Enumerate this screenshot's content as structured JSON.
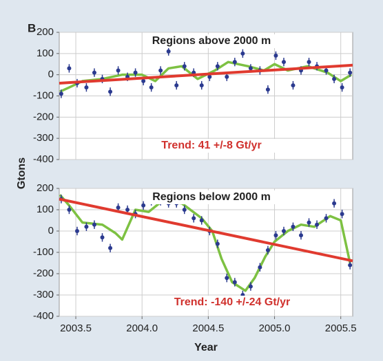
{
  "panel_label": "B",
  "ylabel": "Gtons",
  "xlabel": "Year",
  "chart_data": [
    {
      "type": "scatter",
      "title": "Regions above 2000 m",
      "annotation": "Trend: 41 +/-8 Gt/yr",
      "xlim": [
        2003.375,
        2005.59
      ],
      "ylim": [
        -400,
        200
      ],
      "yticks": [
        200,
        100,
        0,
        -100,
        -200,
        -300,
        -400
      ],
      "grid": true,
      "color": "#2b3a8f",
      "x": [
        2003.39,
        2003.45,
        2003.51,
        2003.58,
        2003.64,
        2003.7,
        2003.76,
        2003.82,
        2003.89,
        2003.95,
        2004.01,
        2004.07,
        2004.14,
        2004.2,
        2004.26,
        2004.32,
        2004.39,
        2004.45,
        2004.51,
        2004.57,
        2004.64,
        2004.7,
        2004.76,
        2004.82,
        2004.89,
        2004.95,
        2005.01,
        2005.07,
        2005.14,
        2005.2,
        2005.26,
        2005.32,
        2005.39,
        2005.45,
        2005.51,
        2005.57
      ],
      "values": [
        -90,
        30,
        -40,
        -60,
        10,
        -20,
        -80,
        20,
        -10,
        10,
        -30,
        -60,
        20,
        110,
        -50,
        40,
        10,
        -50,
        -10,
        40,
        -10,
        60,
        100,
        30,
        20,
        -70,
        90,
        60,
        -50,
        20,
        60,
        40,
        20,
        -20,
        -60,
        10
      ],
      "errors": [
        20,
        20,
        20,
        20,
        20,
        20,
        20,
        20,
        20,
        20,
        20,
        20,
        20,
        20,
        20,
        20,
        20,
        20,
        20,
        20,
        20,
        20,
        20,
        20,
        20,
        20,
        20,
        20,
        20,
        20,
        20,
        20,
        20,
        20,
        20,
        20
      ],
      "smooth": {
        "color": "#7dc142",
        "x": [
          2003.38,
          2003.45,
          2003.55,
          2003.7,
          2003.85,
          2004.0,
          2004.1,
          2004.2,
          2004.3,
          2004.42,
          2004.55,
          2004.65,
          2004.8,
          2004.92,
          2005.0,
          2005.1,
          2005.25,
          2005.4,
          2005.5,
          2005.58
        ],
        "values": [
          -80,
          -60,
          -30,
          -20,
          0,
          0,
          -30,
          30,
          40,
          -20,
          20,
          60,
          40,
          20,
          50,
          20,
          40,
          10,
          -30,
          0
        ]
      },
      "trend": {
        "color": "#e03a2f",
        "x": [
          2003.375,
          2005.59
        ],
        "values": [
          -40,
          45
        ]
      }
    },
    {
      "type": "scatter",
      "title": "Regions below 2000 m",
      "annotation": "Trend: -140 +/-24 Gt/yr",
      "xlim": [
        2003.375,
        2005.59
      ],
      "ylim": [
        -400,
        200
      ],
      "yticks": [
        200,
        100,
        0,
        -100,
        -200,
        -300,
        -400
      ],
      "grid": true,
      "xticks": [
        2003.5,
        {
          "value": 2004,
          "label": "2004.0"
        },
        2004.5,
        {
          "value": 2005,
          "label": "2005.0"
        },
        2005.5
      ],
      "color": "#2b3a8f",
      "x": [
        2003.39,
        2003.45,
        2003.51,
        2003.58,
        2003.64,
        2003.7,
        2003.76,
        2003.82,
        2003.89,
        2003.95,
        2004.01,
        2004.07,
        2004.14,
        2004.2,
        2004.26,
        2004.32,
        2004.39,
        2004.45,
        2004.51,
        2004.57,
        2004.64,
        2004.7,
        2004.76,
        2004.82,
        2004.89,
        2004.95,
        2005.01,
        2005.07,
        2005.14,
        2005.2,
        2005.26,
        2005.32,
        2005.39,
        2005.45,
        2005.51,
        2005.57
      ],
      "values": [
        150,
        100,
        0,
        20,
        30,
        -30,
        -80,
        110,
        100,
        80,
        120,
        140,
        140,
        130,
        130,
        100,
        60,
        50,
        0,
        -60,
        -220,
        -240,
        -300,
        -260,
        -170,
        -90,
        -20,
        0,
        20,
        -20,
        40,
        30,
        60,
        130,
        80,
        -160
      ],
      "errors": [
        20,
        20,
        20,
        20,
        20,
        20,
        20,
        20,
        20,
        20,
        20,
        20,
        20,
        20,
        20,
        20,
        20,
        20,
        20,
        20,
        20,
        20,
        20,
        20,
        20,
        20,
        20,
        20,
        20,
        20,
        20,
        20,
        20,
        20,
        20,
        20
      ],
      "smooth": {
        "color": "#7dc142",
        "x": [
          2003.38,
          2003.45,
          2003.55,
          2003.7,
          2003.8,
          2003.85,
          2003.95,
          2004.05,
          2004.15,
          2004.3,
          2004.45,
          2004.53,
          2004.6,
          2004.68,
          2004.78,
          2004.85,
          2004.93,
          2005.0,
          2005.1,
          2005.2,
          2005.3,
          2005.42,
          2005.5,
          2005.57
        ],
        "values": [
          170,
          120,
          40,
          30,
          -10,
          -40,
          100,
          90,
          140,
          130,
          60,
          0,
          -130,
          -240,
          -280,
          -220,
          -120,
          -50,
          0,
          30,
          20,
          70,
          50,
          -150
        ]
      },
      "trend": {
        "color": "#e03a2f",
        "x": [
          2003.375,
          2005.59
        ],
        "values": [
          150,
          -140
        ]
      }
    }
  ]
}
